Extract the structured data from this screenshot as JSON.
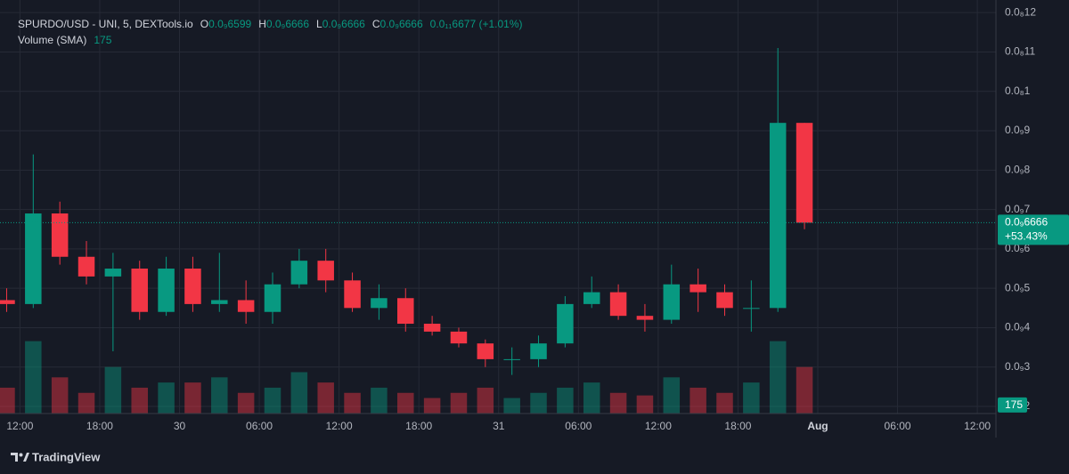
{
  "chart_data": {
    "type": "candlestick",
    "legend": {
      "symbol": "SPURDO/USD - UNI, 5, DEXTools.io",
      "ohlc": [
        {
          "key": "O",
          "label": "0.0₉6599"
        },
        {
          "key": "H",
          "label": "0.0₉6666"
        },
        {
          "key": "L",
          "label": "0.0₉6666"
        },
        {
          "key": "C",
          "label": "0.0₉6666"
        }
      ],
      "change": "0.0₁₁6677 (+1.01%)",
      "volume_name": "Volume (SMA)",
      "volume_value": "175"
    },
    "price_badge": {
      "value": 6.666e-10,
      "label": "0.0₉6666",
      "change": "+53.43%"
    },
    "volume_badge": {
      "value": 175,
      "label": "175"
    },
    "up_color": "#089981",
    "down_color": "#f23645",
    "x": [
      -1,
      1,
      3,
      5,
      7,
      9,
      11,
      13,
      15,
      17,
      19,
      21,
      23,
      25,
      27,
      29,
      31,
      33,
      35,
      37,
      39,
      41,
      43,
      45,
      47,
      49,
      51,
      53,
      55,
      57,
      59
    ],
    "open": [
      4.7e-10,
      4.6e-10,
      6.9e-10,
      5.8e-10,
      5.3e-10,
      5.5e-10,
      4.4e-10,
      5.5e-10,
      4.6e-10,
      4.7e-10,
      4.4e-10,
      5.1e-10,
      5.7e-10,
      5.2e-10,
      4.5e-10,
      4.75e-10,
      4.1e-10,
      3.9e-10,
      3.6e-10,
      3.2e-10,
      3.2e-10,
      3.6e-10,
      4.6e-10,
      4.9e-10,
      4.3e-10,
      4.2e-10,
      5.1e-10,
      4.9e-10,
      4.5e-10,
      4.5e-10,
      9.2e-10
    ],
    "high": [
      5e-10,
      8.4e-10,
      7.2e-10,
      6.2e-10,
      5.9e-10,
      5.7e-10,
      5.8e-10,
      5.8e-10,
      5.9e-10,
      5.2e-10,
      5.4e-10,
      6e-10,
      6e-10,
      5.4e-10,
      5.1e-10,
      5e-10,
      4.3e-10,
      4e-10,
      3.7e-10,
      3.5e-10,
      3.8e-10,
      4.8e-10,
      5.3e-10,
      5.1e-10,
      4.6e-10,
      5.6e-10,
      5.5e-10,
      5.1e-10,
      5.2e-10,
      1.11e-09,
      9.2e-10
    ],
    "low": [
      4.4e-10,
      4.5e-10,
      5.6e-10,
      5.1e-10,
      3.4e-10,
      4.2e-10,
      4.3e-10,
      4.4e-10,
      4.4e-10,
      4.1e-10,
      4.1e-10,
      5e-10,
      4.9e-10,
      4.4e-10,
      4.2e-10,
      3.9e-10,
      3.8e-10,
      3.5e-10,
      3e-10,
      2.8e-10,
      3e-10,
      3.5e-10,
      4.5e-10,
      4.2e-10,
      3.9e-10,
      4.1e-10,
      4.4e-10,
      4.3e-10,
      3.9e-10,
      4.4e-10,
      6.5e-10
    ],
    "close": [
      4.6e-10,
      6.9e-10,
      5.8e-10,
      5.3e-10,
      5.5e-10,
      4.4e-10,
      5.5e-10,
      4.6e-10,
      4.7e-10,
      4.4e-10,
      5.1e-10,
      5.7e-10,
      5.2e-10,
      4.5e-10,
      4.75e-10,
      4.1e-10,
      3.9e-10,
      3.6e-10,
      3.2e-10,
      3.2e-10,
      3.6e-10,
      4.6e-10,
      4.9e-10,
      4.3e-10,
      4.2e-10,
      5.1e-10,
      4.9e-10,
      4.5e-10,
      4.5e-10,
      9.2e-10,
      6.666e-10
    ],
    "volume": [
      500,
      1400,
      700,
      400,
      900,
      500,
      600,
      600,
      700,
      400,
      500,
      800,
      600,
      400,
      500,
      400,
      300,
      400,
      500,
      300,
      400,
      500,
      600,
      400,
      350,
      700,
      500,
      400,
      600,
      1400,
      900
    ],
    "vlim": [
      0,
      8000
    ],
    "xlim": [
      -1.5,
      73.4
    ],
    "xticks": [
      {
        "value": 0,
        "label": "12:00"
      },
      {
        "value": 6,
        "label": "18:00"
      },
      {
        "value": 12,
        "label": "30"
      },
      {
        "value": 18,
        "label": "06:00"
      },
      {
        "value": 24,
        "label": "12:00"
      },
      {
        "value": 30,
        "label": "18:00"
      },
      {
        "value": 36,
        "label": "31"
      },
      {
        "value": 42,
        "label": "06:00"
      },
      {
        "value": 48,
        "label": "12:00"
      },
      {
        "value": 54,
        "label": "18:00"
      },
      {
        "value": 60,
        "label": "Aug"
      },
      {
        "value": 66,
        "label": "06:00"
      },
      {
        "value": 72,
        "label": "12:00"
      }
    ],
    "ylim": [
      1.82e-10,
      1.232e-09
    ],
    "yticks": [
      {
        "value": 1.2e-09,
        "label": "0.0₈12"
      },
      {
        "value": 1.1e-09,
        "label": "0.0₈11"
      },
      {
        "value": 1e-09,
        "label": "0.0₈1"
      },
      {
        "value": 9e-10,
        "label": "0.0₉9"
      },
      {
        "value": 8e-10,
        "label": "0.0₉8"
      },
      {
        "value": 7e-10,
        "label": "0.0₉7"
      },
      {
        "value": 6e-10,
        "label": "0.0₉6"
      },
      {
        "value": 5e-10,
        "label": "0.0₉5"
      },
      {
        "value": 4e-10,
        "label": "0.0₉4"
      },
      {
        "value": 3e-10,
        "label": "0.0₉3"
      },
      {
        "value": 2e-10,
        "label": "0.0₉2"
      }
    ],
    "grid": true
  },
  "brand": "TradingView"
}
